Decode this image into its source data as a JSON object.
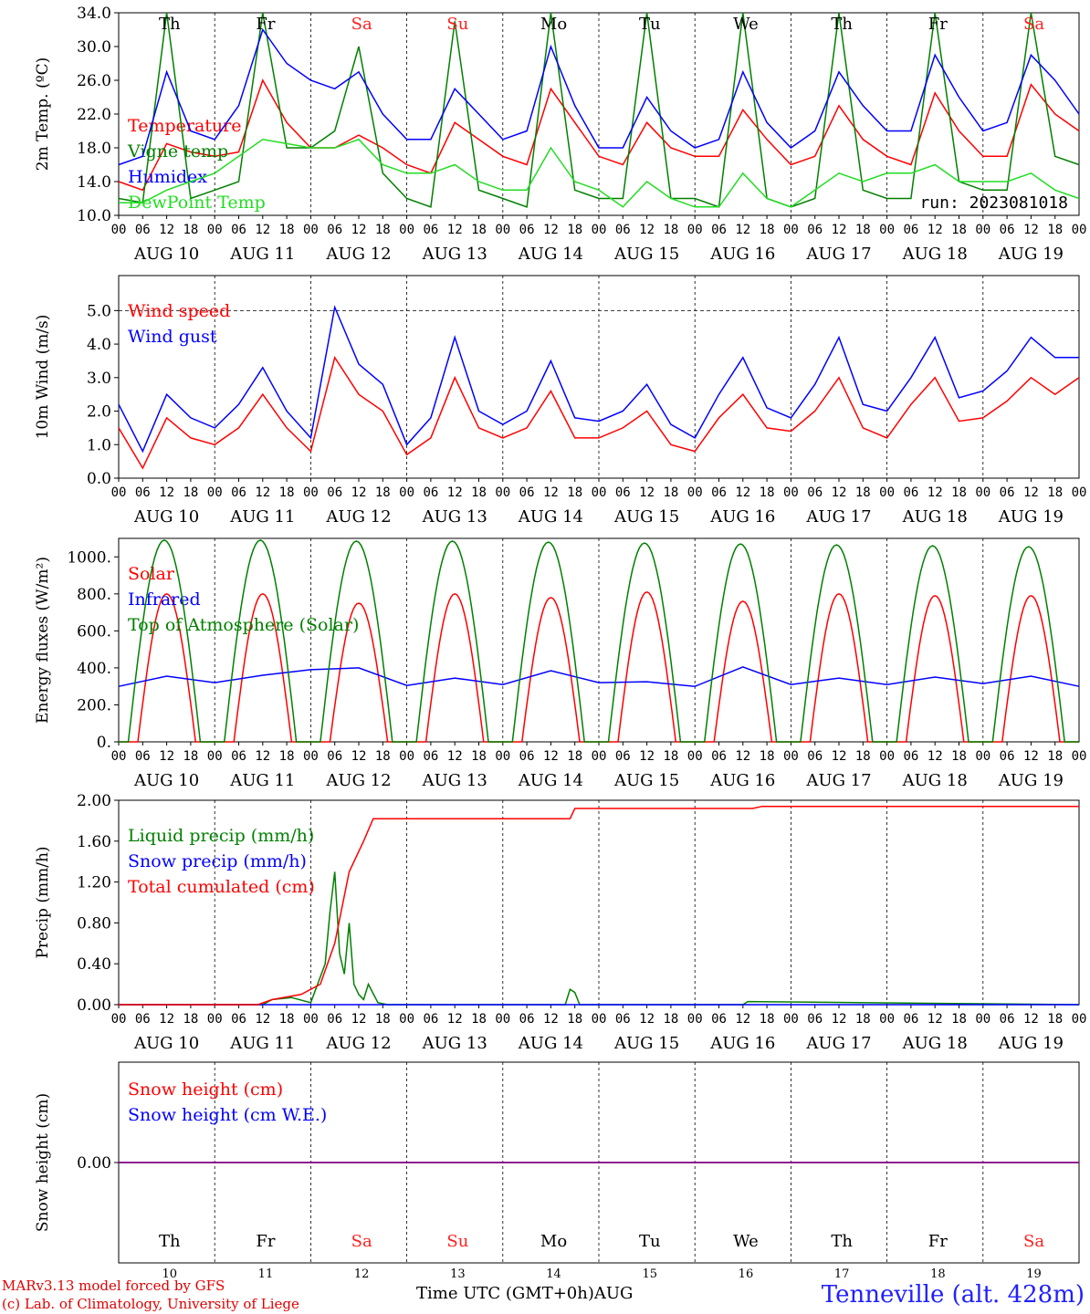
{
  "days": [
    "Th",
    "Fr",
    "Sa",
    "Su",
    "Mo",
    "Tu",
    "We",
    "Th",
    "Fr",
    "Sa"
  ],
  "weekend_flags": [
    false,
    false,
    true,
    true,
    false,
    false,
    false,
    false,
    false,
    true
  ],
  "dates": [
    "AUG 10",
    "AUG 11",
    "AUG 12",
    "AUG 13",
    "AUG 14",
    "AUG 15",
    "AUG 16",
    "AUG 17",
    "AUG 18",
    "AUG 19"
  ],
  "day_numbers": [
    "10",
    "11",
    "12",
    "13",
    "14",
    "15",
    "16",
    "17",
    "18",
    "19"
  ],
  "hour_ticks": [
    "00",
    "06",
    "12",
    "18"
  ],
  "last_tick": "00",
  "colors": {
    "red": "#ff0000",
    "green": "#008000",
    "blue": "#0000ff",
    "lightgreen": "#22dd22",
    "weekend": "#ff2020",
    "purple": "#800080"
  },
  "footer": {
    "model": "MARv3.13 model forced by GFS",
    "lab": "(c) Lab. of Climatology, University of Liege",
    "axis": "Time UTC (GMT+0h)AUG",
    "station": "Tenneville (alt. 428m)"
  },
  "chart_data": [
    {
      "type": "line",
      "ylabel": "2m Temp. (ºC)",
      "ylim": [
        10,
        34
      ],
      "yticks": [
        "10.0",
        "14.0",
        "18.0",
        "22.0",
        "26.0",
        "30.0",
        "34.0"
      ],
      "run_label": "run: 2023081018",
      "series": [
        {
          "name": "Temperature",
          "color": "red",
          "x_days": [
            0,
            0.25,
            0.5,
            0.75,
            1,
            1.25,
            1.5,
            1.75,
            2,
            2.25,
            2.5,
            2.75,
            3,
            3.25,
            3.5,
            3.75,
            4,
            4.25,
            4.5,
            4.75,
            5,
            5.25,
            5.5,
            5.75,
            6,
            6.25,
            6.5,
            6.75,
            7,
            7.25,
            7.5,
            7.75,
            8,
            8.25,
            8.5,
            8.75,
            9,
            9.25,
            9.5,
            9.75,
            10
          ],
          "values": [
            14,
            13,
            18.5,
            17.5,
            17,
            17.5,
            26,
            21,
            18,
            18,
            19.5,
            18,
            16,
            15,
            21,
            19,
            17,
            16,
            25,
            21,
            17,
            16,
            21,
            18,
            17,
            17,
            22.5,
            19,
            16,
            17,
            23,
            19,
            17,
            16,
            24.5,
            20,
            17,
            17,
            25.5,
            22,
            20
          ]
        },
        {
          "name": "Vigne temp",
          "color": "green",
          "x_days": [
            0,
            0.25,
            0.5,
            0.75,
            1,
            1.25,
            1.5,
            1.75,
            2,
            2.25,
            2.5,
            2.75,
            3,
            3.25,
            3.5,
            3.75,
            4,
            4.25,
            4.5,
            4.75,
            5,
            5.25,
            5.5,
            5.75,
            6,
            6.25,
            6.5,
            6.75,
            7,
            7.25,
            7.5,
            7.75,
            8,
            8.25,
            8.5,
            8.75,
            9,
            9.25,
            9.5,
            9.75,
            10
          ],
          "values": [
            12,
            11.5,
            34,
            12,
            13,
            14,
            34,
            18,
            18,
            20,
            30,
            15,
            12,
            11,
            33,
            13,
            12,
            11,
            34,
            13,
            12,
            12,
            34,
            12,
            12,
            11,
            34,
            12,
            11,
            12,
            34,
            13,
            12,
            12,
            34,
            14,
            13,
            13,
            34,
            17,
            16
          ]
        },
        {
          "name": "Humidex",
          "color": "blue",
          "x_days": [
            0,
            0.25,
            0.5,
            0.75,
            1,
            1.25,
            1.5,
            1.75,
            2,
            2.25,
            2.5,
            2.75,
            3,
            3.25,
            3.5,
            3.75,
            4,
            4.25,
            4.5,
            4.75,
            5,
            5.25,
            5.5,
            5.75,
            6,
            6.25,
            6.5,
            6.75,
            7,
            7.25,
            7.5,
            7.75,
            8,
            8.25,
            8.5,
            8.75,
            9,
            9.25,
            9.5,
            9.75,
            10
          ],
          "values": [
            16,
            17,
            27,
            20,
            19,
            23,
            32,
            28,
            26,
            25,
            27,
            22,
            19,
            19,
            25,
            22,
            19,
            20,
            30,
            23,
            18,
            18,
            24,
            20,
            18,
            19,
            27,
            21,
            18,
            20,
            27,
            23,
            20,
            20,
            29,
            24,
            20,
            21,
            29,
            26,
            22
          ]
        },
        {
          "name": "DewPoint Temp",
          "color": "lightgreen",
          "x_days": [
            0,
            0.25,
            0.5,
            0.75,
            1,
            1.25,
            1.5,
            1.75,
            2,
            2.25,
            2.5,
            2.75,
            3,
            3.25,
            3.5,
            3.75,
            4,
            4.25,
            4.5,
            4.75,
            5,
            5.25,
            5.5,
            5.75,
            6,
            6.25,
            6.5,
            6.75,
            7,
            7.25,
            7.5,
            7.75,
            8,
            8.25,
            8.5,
            8.75,
            9,
            9.25,
            9.5,
            9.75,
            10
          ],
          "values": [
            11.5,
            11.5,
            13,
            14,
            15,
            17,
            19,
            18.5,
            18,
            18,
            19,
            16,
            15,
            15,
            16,
            14,
            13,
            13,
            18,
            14,
            13,
            11,
            14,
            12,
            11,
            11,
            15,
            12,
            11,
            13,
            15,
            14,
            15,
            15,
            16,
            14,
            14,
            14,
            15,
            13,
            12
          ]
        }
      ]
    },
    {
      "type": "line",
      "ylabel": "10m Wind (m/s)",
      "ylim": [
        0,
        5.5
      ],
      "yticks": [
        "0.0",
        "1.0",
        "2.0",
        "3.0",
        "4.0",
        "5.0"
      ],
      "series": [
        {
          "name": "Wind speed",
          "color": "red",
          "x_days": [
            0,
            0.25,
            0.5,
            0.75,
            1,
            1.25,
            1.5,
            1.75,
            2,
            2.25,
            2.5,
            2.75,
            3,
            3.25,
            3.5,
            3.75,
            4,
            4.25,
            4.5,
            4.75,
            5,
            5.25,
            5.5,
            5.75,
            6,
            6.25,
            6.5,
            6.75,
            7,
            7.25,
            7.5,
            7.75,
            8,
            8.25,
            8.5,
            8.75,
            9,
            9.25,
            9.5,
            9.75,
            10
          ],
          "values": [
            1.5,
            0.3,
            1.8,
            1.2,
            1.0,
            1.5,
            2.5,
            1.5,
            0.8,
            3.6,
            2.5,
            2.0,
            0.7,
            1.2,
            3.0,
            1.5,
            1.2,
            1.5,
            2.6,
            1.2,
            1.2,
            1.5,
            2.0,
            1.0,
            0.8,
            1.8,
            2.5,
            1.5,
            1.4,
            2.0,
            3.0,
            1.5,
            1.2,
            2.2,
            3.0,
            1.7,
            1.8,
            2.3,
            3.0,
            2.5,
            3.0
          ]
        },
        {
          "name": "Wind gust",
          "color": "blue",
          "x_days": [
            0,
            0.25,
            0.5,
            0.75,
            1,
            1.25,
            1.5,
            1.75,
            2,
            2.25,
            2.5,
            2.75,
            3,
            3.25,
            3.5,
            3.75,
            4,
            4.25,
            4.5,
            4.75,
            5,
            5.25,
            5.5,
            5.75,
            6,
            6.25,
            6.5,
            6.75,
            7,
            7.25,
            7.5,
            7.75,
            8,
            8.25,
            8.5,
            8.75,
            9,
            9.25,
            9.5,
            9.75,
            10
          ],
          "values": [
            2.2,
            0.8,
            2.5,
            1.8,
            1.5,
            2.2,
            3.3,
            2.0,
            1.2,
            5.1,
            3.4,
            2.8,
            1.0,
            1.8,
            4.2,
            2.0,
            1.6,
            2.0,
            3.5,
            1.8,
            1.7,
            2.0,
            2.8,
            1.6,
            1.2,
            2.5,
            3.6,
            2.1,
            1.8,
            2.8,
            4.2,
            2.2,
            2.0,
            3.0,
            4.2,
            2.4,
            2.6,
            3.2,
            4.2,
            3.6,
            3.6
          ]
        }
      ]
    },
    {
      "type": "line",
      "ylabel": "Energy fluxes (W/m²)",
      "ylim": [
        0,
        1100
      ],
      "yticks": [
        "0.",
        "200.",
        "400.",
        "600.",
        "800.",
        "1000."
      ],
      "series": [
        {
          "name": "Solar",
          "color": "red",
          "peaks": [
            800,
            800,
            750,
            800,
            780,
            810,
            760,
            800,
            790,
            790
          ]
        },
        {
          "name": "Infrared",
          "color": "blue",
          "x_days": [
            0,
            0.5,
            1,
            1.5,
            2,
            2.5,
            3,
            3.5,
            4,
            4.5,
            5,
            5.5,
            6,
            6.5,
            7,
            7.5,
            8,
            8.5,
            9,
            9.5,
            10
          ],
          "values": [
            300,
            355,
            320,
            360,
            390,
            400,
            305,
            345,
            310,
            385,
            320,
            325,
            300,
            405,
            310,
            345,
            310,
            350,
            315,
            355,
            300
          ]
        },
        {
          "name": "Top of Atmosphere (Solar)",
          "color": "green",
          "peaks": [
            1090,
            1090,
            1085,
            1085,
            1080,
            1075,
            1070,
            1065,
            1060,
            1055
          ]
        }
      ]
    },
    {
      "type": "line",
      "ylabel": "Precip (mm/h)",
      "ylim": [
        0,
        2.0
      ],
      "yticks": [
        "0.00",
        "0.40",
        "0.80",
        "1.20",
        "1.60",
        "2.00"
      ],
      "series": [
        {
          "name": "Liquid precip (mm/h)",
          "color": "green",
          "x_days": [
            0,
            1.5,
            1.6,
            1.8,
            2.0,
            2.15,
            2.2,
            2.25,
            2.3,
            2.35,
            2.4,
            2.45,
            2.5,
            2.55,
            2.6,
            2.7,
            2.8,
            4.65,
            4.7,
            4.75,
            4.8,
            6.5,
            6.55,
            10
          ],
          "values": [
            0,
            0,
            0.05,
            0.07,
            0.02,
            0.4,
            0.9,
            1.3,
            0.5,
            0.3,
            0.8,
            0.2,
            0.1,
            0.05,
            0.2,
            0.02,
            0,
            0,
            0.15,
            0.12,
            0,
            0,
            0.03,
            0
          ]
        },
        {
          "name": "Snow precip (mm/h)",
          "color": "blue",
          "x_days": [
            0,
            10
          ],
          "values": [
            0,
            0
          ]
        },
        {
          "name": "Total cumulated (cm)",
          "color": "red",
          "x_days": [
            0,
            1.45,
            1.6,
            1.9,
            2.1,
            2.25,
            2.4,
            2.55,
            2.65,
            4.7,
            4.75,
            6.6,
            6.7,
            10
          ],
          "values": [
            0,
            0,
            0.05,
            0.1,
            0.2,
            0.6,
            1.3,
            1.6,
            1.82,
            1.82,
            1.92,
            1.92,
            1.94,
            1.94
          ]
        }
      ]
    },
    {
      "type": "line",
      "ylabel": "Snow height (cm)",
      "ylim": [
        -1,
        1
      ],
      "yticks": [
        "0.00"
      ],
      "series": [
        {
          "name": "Snow height (cm)",
          "color": "red",
          "x_days": [
            0,
            10
          ],
          "values": [
            0,
            0
          ]
        },
        {
          "name": "Snow height (cm W.E.)",
          "color": "blue",
          "x_days": [
            0,
            10
          ],
          "values": [
            0,
            0
          ]
        }
      ]
    }
  ]
}
